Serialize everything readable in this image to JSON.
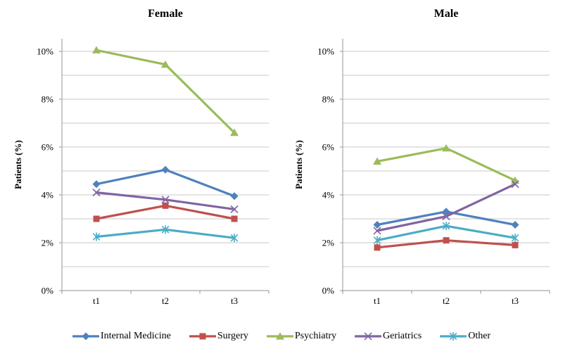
{
  "y_axis": {
    "label": "Patients (%)",
    "ticks": [
      "0%",
      "2%",
      "4%",
      "6%",
      "8%",
      "10%"
    ],
    "tick_values": [
      0,
      2,
      4,
      6,
      8,
      10
    ],
    "gridline_step": 1,
    "max_gridline": 10
  },
  "x_axis": {
    "categories": [
      "t1",
      "t2",
      "t3"
    ]
  },
  "legend_labels": [
    "Internal Medicine",
    "Surgery",
    "Psychiatry",
    "Geriatrics",
    "Other"
  ],
  "colors": {
    "internal_medicine": "#4F81BD",
    "surgery": "#C0504D",
    "psychiatry": "#9BBB59",
    "geriatrics": "#8064A2",
    "other": "#4BACC6",
    "gridline": "#C9C9C9",
    "axis": "#A6A6A6"
  },
  "chart_data": [
    {
      "type": "line",
      "title": "Female",
      "xlabel": "",
      "ylabel": "Patients (%)",
      "x": [
        "t1",
        "t2",
        "t3"
      ],
      "ylim": [
        0,
        10.5
      ],
      "grid": true,
      "legend_position": "bottom",
      "series": [
        {
          "name": "Internal Medicine",
          "color": "#4F81BD",
          "marker": "diamond",
          "values": [
            4.45,
            5.05,
            3.95
          ]
        },
        {
          "name": "Surgery",
          "color": "#C0504D",
          "marker": "square",
          "values": [
            3.0,
            3.55,
            3.0
          ]
        },
        {
          "name": "Psychiatry",
          "color": "#9BBB59",
          "marker": "triangle",
          "values": [
            10.05,
            9.45,
            6.6
          ]
        },
        {
          "name": "Geriatrics",
          "color": "#8064A2",
          "marker": "x",
          "values": [
            4.1,
            3.8,
            3.4
          ]
        },
        {
          "name": "Other",
          "color": "#4BACC6",
          "marker": "asterisk",
          "values": [
            2.25,
            2.55,
            2.2
          ]
        }
      ]
    },
    {
      "type": "line",
      "title": "Male",
      "xlabel": "",
      "ylabel": "Patients (%)",
      "x": [
        "t1",
        "t2",
        "t3"
      ],
      "ylim": [
        0,
        10.5
      ],
      "grid": true,
      "legend_position": "bottom",
      "series": [
        {
          "name": "Internal Medicine",
          "color": "#4F81BD",
          "marker": "diamond",
          "values": [
            2.75,
            3.3,
            2.75
          ]
        },
        {
          "name": "Surgery",
          "color": "#C0504D",
          "marker": "square",
          "values": [
            1.8,
            2.1,
            1.9
          ]
        },
        {
          "name": "Psychiatry",
          "color": "#9BBB59",
          "marker": "triangle",
          "values": [
            5.4,
            5.95,
            4.6
          ]
        },
        {
          "name": "Geriatrics",
          "color": "#8064A2",
          "marker": "x",
          "values": [
            2.5,
            3.1,
            4.45
          ]
        },
        {
          "name": "Other",
          "color": "#4BACC6",
          "marker": "asterisk",
          "values": [
            2.1,
            2.7,
            2.2
          ]
        }
      ]
    }
  ]
}
